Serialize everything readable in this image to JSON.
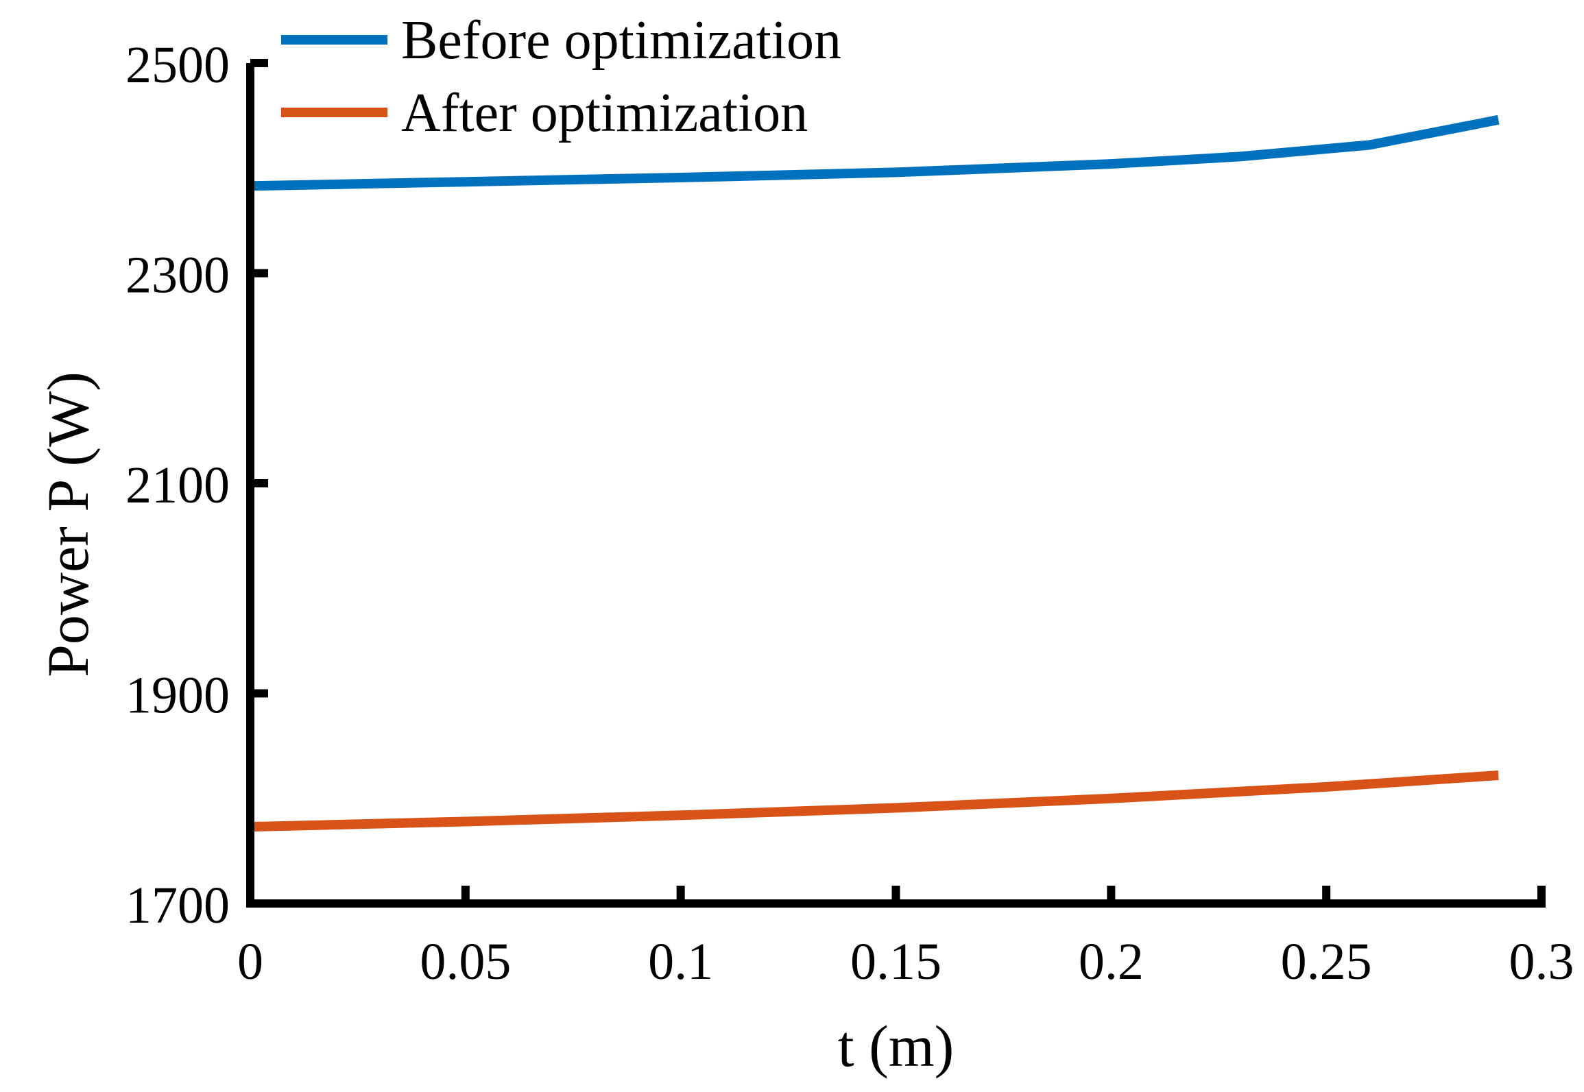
{
  "chart_data": {
    "type": "line",
    "title": "",
    "xlabel": "t (m)",
    "ylabel": "Power P (W)",
    "xlim": [
      0,
      0.3
    ],
    "ylim": [
      1700,
      2500
    ],
    "xticks": [
      0,
      0.05,
      0.1,
      0.15,
      0.2,
      0.25,
      0.3
    ],
    "xtick_labels": [
      "0",
      "0.05",
      "0.1",
      "0.15",
      "0.2",
      "0.25",
      "0.3"
    ],
    "yticks": [
      1700,
      1900,
      2100,
      2300,
      2500
    ],
    "ytick_labels": [
      "1700",
      "1900",
      "2100",
      "2300",
      "2500"
    ],
    "grid": false,
    "legend_position": "top-left",
    "series": [
      {
        "name": "Before optimization",
        "color": "#0072BD",
        "x": [
          0,
          0.05,
          0.1,
          0.15,
          0.2,
          0.23,
          0.26,
          0.29
        ],
        "y": [
          2383,
          2387,
          2391,
          2396,
          2404,
          2411,
          2422,
          2446
        ]
      },
      {
        "name": "After optimization",
        "color": "#D95319",
        "x": [
          0,
          0.05,
          0.1,
          0.15,
          0.2,
          0.25,
          0.29
        ],
        "y": [
          1773,
          1778,
          1784,
          1791,
          1800,
          1811,
          1822
        ]
      }
    ]
  }
}
